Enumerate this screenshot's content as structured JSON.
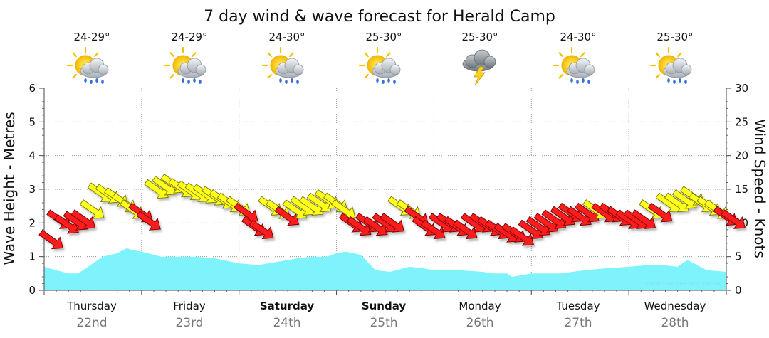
{
  "chart_data": {
    "type": "area",
    "title": "7 day wind & wave forecast for Herald Camp",
    "ylabel_left": "Wave Height - Metres",
    "ylabel_right": "Wind Speed - Knots",
    "ylim_left": [
      0,
      6
    ],
    "ylim_right": [
      0,
      30
    ],
    "yticks_left": [
      "0",
      "1",
      "2",
      "3",
      "4",
      "5",
      "6"
    ],
    "yticks_right": [
      "0",
      "5",
      "10",
      "15",
      "20",
      "25",
      "30"
    ],
    "watermark": "www.seabreeze.com.au",
    "days": [
      {
        "name": "Thursday",
        "date": "22nd",
        "bold": false,
        "temp": "24-29°",
        "weather": "rain"
      },
      {
        "name": "Friday",
        "date": "23rd",
        "bold": false,
        "temp": "24-29°",
        "weather": "rain"
      },
      {
        "name": "Saturday",
        "date": "24th",
        "bold": true,
        "temp": "24-30°",
        "weather": "rain"
      },
      {
        "name": "Sunday",
        "date": "25th",
        "bold": true,
        "temp": "25-30°",
        "weather": "rain"
      },
      {
        "name": "Monday",
        "date": "26th",
        "bold": false,
        "temp": "25-30°",
        "weather": "storm"
      },
      {
        "name": "Tuesday",
        "date": "27th",
        "bold": false,
        "temp": "24-30°",
        "weather": "rain"
      },
      {
        "name": "Wednesday",
        "date": "28th",
        "bold": false,
        "temp": "25-30°",
        "weather": "rain"
      }
    ],
    "wave_series": {
      "name": "Wave Height",
      "color": "#7ef3fb",
      "x_days": [
        0,
        0.12,
        0.25,
        0.35,
        0.45,
        0.6,
        0.75,
        0.85,
        0.9,
        1.0,
        1.2,
        1.35,
        1.55,
        1.75,
        2.0,
        2.2,
        2.4,
        2.6,
        2.75,
        2.9,
        3.0,
        3.1,
        3.25,
        3.4,
        3.55,
        3.75,
        3.9,
        4.0,
        4.25,
        4.5,
        4.6,
        4.75,
        4.8,
        5.0,
        5.3,
        5.55,
        5.75,
        6.0,
        6.2,
        6.35,
        6.5,
        6.6,
        6.8,
        7.0
      ],
      "values": [
        0.7,
        0.6,
        0.5,
        0.5,
        0.7,
        1.0,
        1.1,
        1.25,
        1.2,
        1.15,
        1.0,
        1.0,
        1.0,
        0.95,
        0.8,
        0.75,
        0.85,
        0.95,
        1.0,
        1.0,
        1.1,
        1.15,
        1.05,
        0.6,
        0.55,
        0.7,
        0.65,
        0.6,
        0.6,
        0.55,
        0.5,
        0.5,
        0.4,
        0.5,
        0.5,
        0.6,
        0.65,
        0.7,
        0.75,
        0.75,
        0.7,
        0.9,
        0.6,
        0.55
      ]
    },
    "wind_series": {
      "name": "Wind Speed",
      "units": "knots",
      "directions": "from north-west",
      "yellow_threshold": 12,
      "x_days": [
        0,
        0.08,
        0.16,
        0.25,
        0.33,
        0.42,
        0.5,
        0.58,
        0.67,
        0.75,
        0.83,
        0.92,
        1.0,
        1.08,
        1.16,
        1.25,
        1.33,
        1.42,
        1.5,
        1.58,
        1.67,
        1.75,
        1.83,
        1.92,
        2.0,
        2.08,
        2.16,
        2.25,
        2.33,
        2.42,
        2.5,
        2.58,
        2.67,
        2.75,
        2.83,
        2.92,
        3.0,
        3.08,
        3.16,
        3.25,
        3.33,
        3.42,
        3.5,
        3.58,
        3.67,
        3.75,
        3.83,
        3.92,
        4.0,
        4.08,
        4.16,
        4.25,
        4.33,
        4.42,
        4.5,
        4.58,
        4.67,
        4.75,
        4.83,
        4.92,
        5.0,
        5.08,
        5.16,
        5.25,
        5.33,
        5.42,
        5.5,
        5.58,
        5.67,
        5.75,
        5.83,
        5.92,
        6.0,
        6.08,
        6.16,
        6.25,
        6.33,
        6.42,
        6.5,
        6.58,
        6.67,
        6.75,
        6.83,
        6.92,
        7.0
      ],
      "values": [
        7.5,
        10.5,
        9.8,
        10.3,
        10.5,
        12.0,
        14.5,
        14.3,
        13.8,
        13.0,
        12.0,
        11.5,
        10.3,
        15.0,
        15.5,
        15.8,
        15.2,
        14.8,
        14.5,
        14.3,
        14.0,
        13.5,
        13.0,
        12.5,
        11.5,
        9.5,
        9.0,
        12.5,
        12.0,
        11.0,
        12.0,
        12.5,
        12.5,
        13.0,
        13.5,
        13.0,
        12.0,
        10.0,
        9.5,
        10.0,
        9.5,
        10.0,
        10.0,
        12.5,
        12.0,
        11.0,
        9.5,
        9.0,
        10.0,
        10.0,
        9.5,
        9.0,
        10.0,
        10.0,
        9.5,
        9.0,
        8.5,
        8.5,
        8.0,
        9.0,
        9.5,
        10.0,
        10.5,
        11.0,
        11.5,
        11.0,
        11.5,
        12.0,
        11.5,
        11.5,
        11.0,
        10.5,
        10.5,
        10.5,
        12.0,
        11.5,
        13.0,
        13.0,
        13.5,
        14.0,
        13.0,
        12.5,
        12.0,
        11.0,
        10.5
      ]
    }
  }
}
